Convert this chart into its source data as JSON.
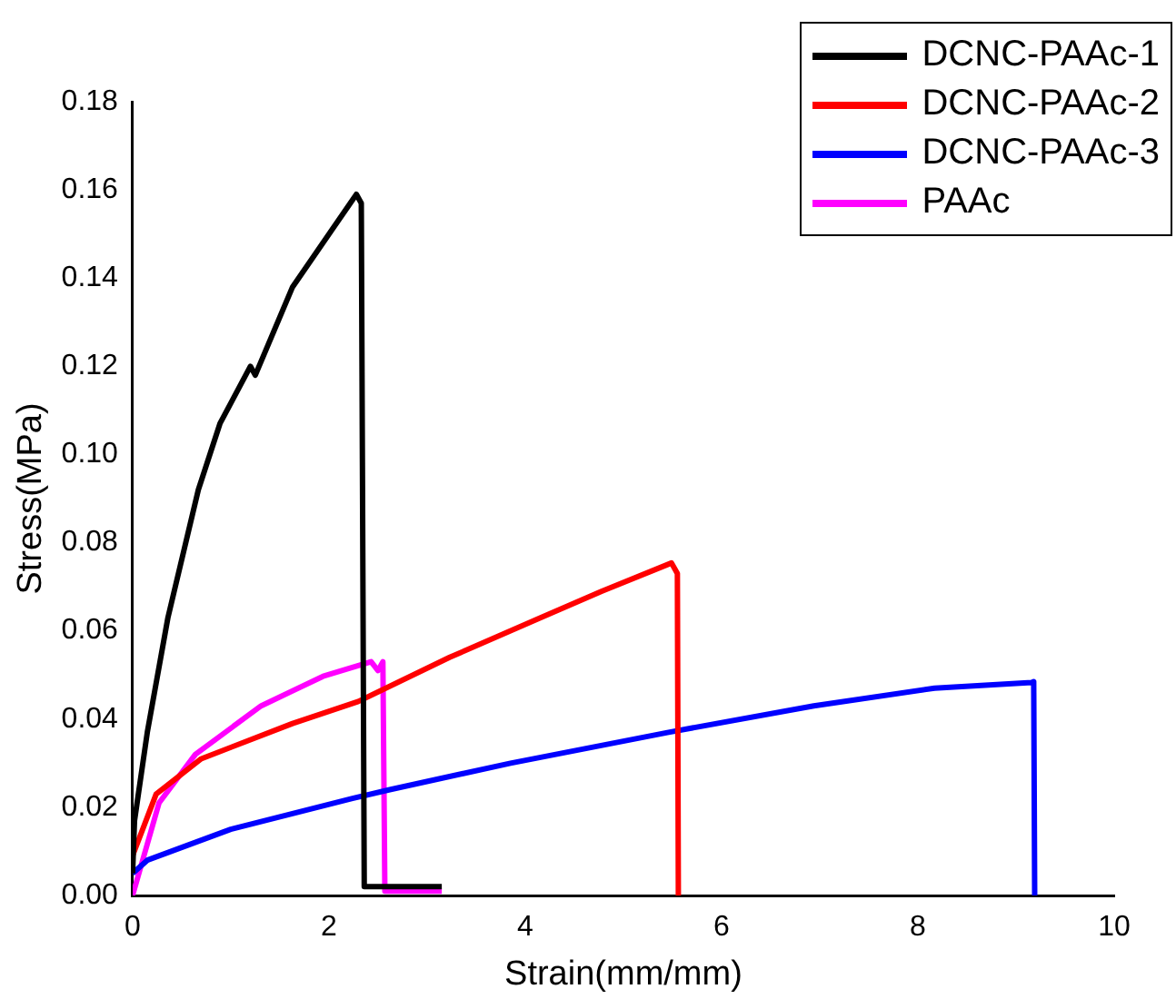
{
  "chart_data": {
    "type": "line",
    "xlabel": "Strain(mm/mm)",
    "ylabel": "Stress(MPa)",
    "xlim": [
      0,
      10
    ],
    "xticks": [
      0,
      2,
      4,
      6,
      8,
      10
    ],
    "ylim": [
      0,
      0.18
    ],
    "yticks": [
      {
        "value": 0,
        "label": "0.00"
      },
      {
        "value": 0.02,
        "label": "0.02"
      },
      {
        "value": 0.04,
        "label": "0.04"
      },
      {
        "value": 0.06,
        "label": "0.06"
      },
      {
        "value": 0.08,
        "label": "0.08"
      },
      {
        "value": 0.1,
        "label": "0.10"
      },
      {
        "value": 0.12,
        "label": "0.12"
      },
      {
        "value": 0.14,
        "label": "0.14"
      },
      {
        "value": 0.16,
        "label": "0.16"
      },
      {
        "value": 0.18,
        "label": "0.18"
      }
    ],
    "grid": false,
    "legend": "top right",
    "marker": "none",
    "line_style": "solid",
    "series": [
      {
        "name": "DCNC-PAAc-1",
        "color": "#000000",
        "x": [
          0,
          0.02,
          0.15,
          0.36,
          0.67,
          0.89,
          1.2,
          1.25,
          1.63,
          2.28,
          2.33,
          2.36,
          2.5,
          3.15
        ],
        "values": [
          0.005,
          0.017,
          0.037,
          0.063,
          0.092,
          0.107,
          0.12,
          0.118,
          0.138,
          0.159,
          0.157,
          0.002,
          0.002,
          0.002
        ]
      },
      {
        "name": "DCNC-PAAc-2",
        "color": "#ff0000",
        "x": [
          0,
          0.24,
          0.7,
          1.63,
          2.3,
          3.23,
          4.16,
          4.78,
          5.49,
          5.55,
          5.56
        ],
        "values": [
          0.009,
          0.023,
          0.031,
          0.039,
          0.044,
          0.054,
          0.063,
          0.069,
          0.0754,
          0.073,
          0
        ]
      },
      {
        "name": "DCNC-PAAc-3",
        "color": "#0000ff",
        "x": [
          0,
          0.15,
          1.0,
          2.24,
          2.62,
          3.85,
          5.46,
          6.94,
          8.17,
          9.16,
          9.18,
          9.19
        ],
        "values": [
          0.005,
          0.008,
          0.015,
          0.022,
          0.024,
          0.03,
          0.037,
          0.043,
          0.047,
          0.0483,
          0.0485,
          0
        ]
      },
      {
        "name": "PAAc",
        "color": "#ff00ff",
        "x": [
          0,
          0.27,
          0.64,
          1.31,
          1.94,
          2.43,
          2.5,
          2.55,
          2.57,
          3.15
        ],
        "values": [
          0,
          0.021,
          0.032,
          0.043,
          0.0497,
          0.053,
          0.051,
          0.053,
          0.001,
          0.001
        ]
      }
    ]
  }
}
